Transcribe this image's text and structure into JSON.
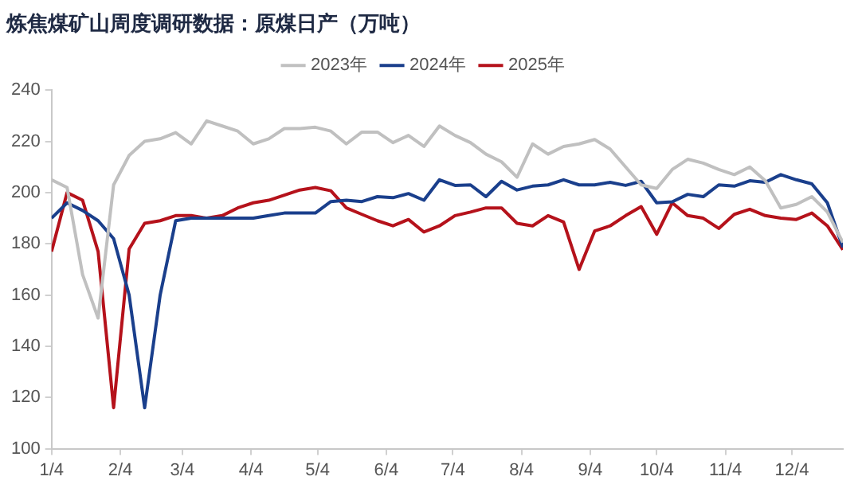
{
  "chart_data": {
    "type": "line",
    "title": "炼焦煤矿山周度调研数据：原煤日产（万吨）",
    "x": [
      "--01-04",
      "--01-11",
      "--01-18",
      "--01-25",
      "--02-01",
      "--02-08",
      "--02-15",
      "--02-22",
      "--03-01",
      "--03-08",
      "--03-15",
      "--03-22",
      "--03-29",
      "--04-05",
      "--04-12",
      "--04-19",
      "--04-26",
      "--05-03",
      "--05-10",
      "--05-17",
      "--05-24",
      "--05-31",
      "--06-07",
      "--06-14",
      "--06-21",
      "--06-28",
      "--07-05",
      "--07-12",
      "--07-19",
      "--07-26",
      "--08-02",
      "--08-09",
      "--08-16",
      "--08-23",
      "--08-30",
      "--09-06",
      "--09-13",
      "--09-20",
      "--09-27",
      "--10-04",
      "--10-11",
      "--10-18",
      "--10-25",
      "--11-01",
      "--11-08",
      "--11-15",
      "--11-22",
      "--11-29",
      "--12-06",
      "--12-13",
      "--12-20",
      "--12-27"
    ],
    "series": [
      {
        "name": "2023年",
        "color": "#c0c0c0",
        "values": [
          205,
          202,
          168,
          151,
          203,
          214.5,
          220,
          221,
          223.4,
          219,
          228,
          226,
          224,
          219,
          221,
          225,
          225,
          225.5,
          224,
          219,
          223.6,
          223.6,
          219.5,
          222.3,
          218,
          226,
          222.3,
          219.5,
          215,
          212,
          206,
          219,
          215,
          218,
          219,
          220.7,
          217,
          210,
          203,
          201.6,
          209,
          213,
          211.5,
          209,
          207,
          210,
          204.6,
          194,
          195.4,
          198.4,
          192.4,
          180.5
        ]
      },
      {
        "name": "2024年",
        "color": "#1a3f8c",
        "values": [
          190,
          196,
          193,
          189,
          182,
          160,
          116,
          160,
          189,
          190,
          190,
          190,
          190,
          190,
          191,
          192,
          192,
          192,
          196.5,
          197,
          196.5,
          198.4,
          198,
          199.6,
          197,
          205,
          202.8,
          203,
          198.4,
          204.4,
          201,
          202.5,
          203,
          205,
          203,
          203,
          204,
          202.8,
          204.4,
          196,
          196.4,
          199.3,
          198.4,
          203,
          202.5,
          204.6,
          204,
          207,
          205,
          203.4,
          196,
          178.6
        ]
      },
      {
        "name": "2025年",
        "color": "#b5121b",
        "values": [
          177,
          200,
          197,
          177,
          116,
          178,
          188,
          189,
          191,
          191,
          190,
          191,
          194,
          196,
          197,
          199,
          201,
          202,
          200.7,
          194,
          191.5,
          189,
          187,
          189.5,
          184.6,
          187,
          191,
          192.4,
          194,
          194,
          188,
          187,
          191,
          188.5,
          170,
          185,
          187,
          191,
          194.5,
          183.7,
          196,
          191,
          190,
          186,
          191.5,
          193.5,
          191,
          190,
          189.5,
          192,
          187,
          177.7
        ]
      }
    ],
    "xlim": [
      "--01-04",
      "--12-27"
    ],
    "xticks": [
      {
        "value": "--01-04",
        "label": "1/4"
      },
      {
        "value": "--02-04",
        "label": "2/4"
      },
      {
        "value": "--03-04",
        "label": "3/4"
      },
      {
        "value": "--04-04",
        "label": "4/4"
      },
      {
        "value": "--05-04",
        "label": "5/4"
      },
      {
        "value": "--06-04",
        "label": "6/4"
      },
      {
        "value": "--07-04",
        "label": "7/4"
      },
      {
        "value": "--08-04",
        "label": "8/4"
      },
      {
        "value": "--09-04",
        "label": "9/4"
      },
      {
        "value": "--10-04",
        "label": "10/4"
      },
      {
        "value": "--11-04",
        "label": "11/4"
      },
      {
        "value": "--12-04",
        "label": "12/4"
      }
    ],
    "ylim": [
      100,
      240
    ],
    "yticks": [
      100,
      120,
      140,
      160,
      180,
      200,
      220,
      240
    ],
    "grid": false,
    "legend": "top",
    "marker": "none",
    "line_style": "solid"
  }
}
